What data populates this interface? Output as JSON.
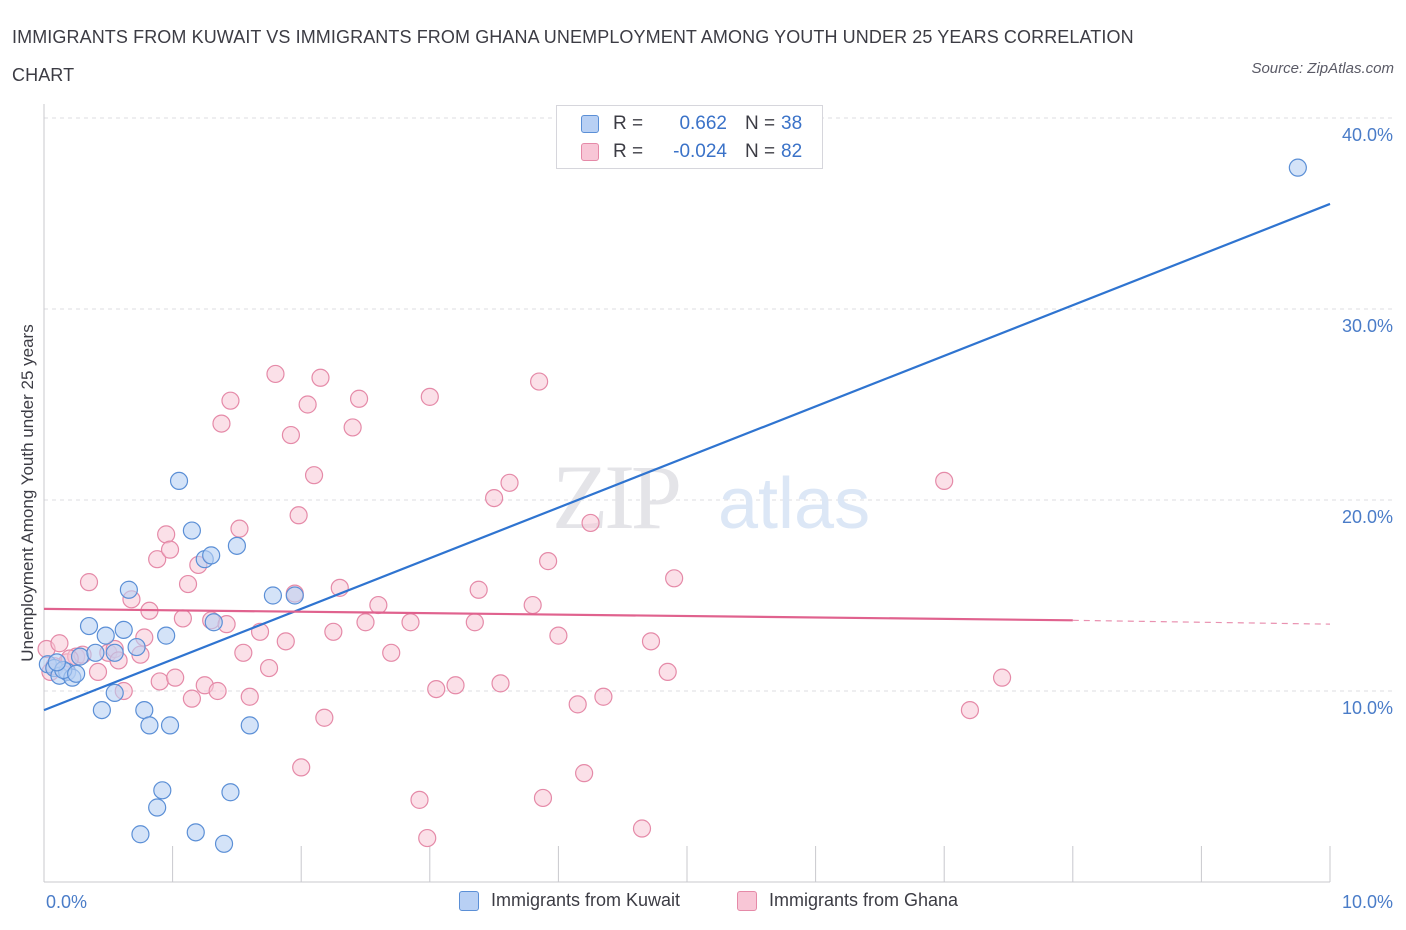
{
  "title": "IMMIGRANTS FROM KUWAIT VS IMMIGRANTS FROM GHANA UNEMPLOYMENT AMONG YOUTH UNDER 25 YEARS CORRELATION CHART",
  "source": "Source: ZipAtlas.com",
  "watermark": {
    "zip": "ZIP",
    "atlas": "atlas"
  },
  "colors": {
    "kuwait_fill": "#b8d0f4",
    "kuwait_stroke": "#5b8fd6",
    "kuwait_line": "#2f74d0",
    "ghana_fill": "#f8c6d6",
    "ghana_stroke": "#e58aa8",
    "ghana_line": "#e0628e"
  },
  "legend": {
    "rows": [
      {
        "r_label": "R =",
        "r_value": "0.662",
        "n_label": "N =",
        "n_value": "38"
      },
      {
        "r_label": "R =",
        "r_value": "-0.024",
        "n_label": "N =",
        "n_value": "82"
      }
    ]
  },
  "bottom_legend": {
    "kuwait": "Immigrants from Kuwait",
    "ghana": "Immigrants from Ghana"
  },
  "chart_data": {
    "type": "scatter",
    "xlabel": "",
    "ylabel": "Unemployment Among Youth under 25 years",
    "xlim": [
      0,
      10
    ],
    "ylim": [
      0,
      40
    ],
    "x_tick_labels": [
      "0.0%",
      "10.0%"
    ],
    "y_ticks": [
      10,
      20,
      30,
      40
    ],
    "y_tick_labels": [
      "10.0%",
      "20.0%",
      "30.0%",
      "40.0%"
    ],
    "grid": "horizontal dashed",
    "legend_placement": "top-center",
    "series": [
      {
        "name": "Immigrants from Kuwait",
        "trend": {
          "x": [
            0,
            10
          ],
          "y": [
            9.0,
            35.5
          ],
          "dashed_from": null
        },
        "points": [
          [
            0.03,
            11.4
          ],
          [
            0.08,
            11.2
          ],
          [
            0.12,
            10.8
          ],
          [
            0.18,
            11.0
          ],
          [
            0.22,
            10.7
          ],
          [
            0.28,
            11.8
          ],
          [
            0.35,
            13.4
          ],
          [
            0.4,
            12.0
          ],
          [
            0.45,
            9.0
          ],
          [
            0.48,
            12.9
          ],
          [
            0.55,
            12.0
          ],
          [
            0.55,
            9.9
          ],
          [
            0.62,
            13.2
          ],
          [
            0.66,
            15.3
          ],
          [
            0.72,
            12.3
          ],
          [
            0.75,
            2.5
          ],
          [
            0.78,
            9.0
          ],
          [
            0.82,
            8.2
          ],
          [
            0.88,
            3.9
          ],
          [
            0.92,
            4.8
          ],
          [
            0.95,
            12.9
          ],
          [
            0.98,
            8.2
          ],
          [
            1.05,
            21.0
          ],
          [
            1.15,
            18.4
          ],
          [
            1.18,
            2.6
          ],
          [
            1.25,
            16.9
          ],
          [
            1.3,
            17.1
          ],
          [
            1.32,
            13.6
          ],
          [
            1.4,
            2.0
          ],
          [
            1.45,
            4.7
          ],
          [
            1.5,
            17.6
          ],
          [
            1.6,
            8.2
          ],
          [
            1.78,
            15.0
          ],
          [
            1.95,
            15.0
          ],
          [
            9.75,
            37.4
          ],
          [
            0.15,
            11.1
          ],
          [
            0.25,
            10.9
          ],
          [
            0.1,
            11.5
          ]
        ]
      },
      {
        "name": "Immigrants from Ghana",
        "trend": {
          "x": [
            0,
            8.0
          ],
          "y": [
            14.3,
            13.7
          ],
          "dashed_from": 8.0,
          "dashed_to_x": 10,
          "dashed_to_y": 13.5
        },
        "points": [
          [
            0.02,
            12.2
          ],
          [
            0.05,
            11.0
          ],
          [
            0.12,
            12.5
          ],
          [
            0.18,
            11.5
          ],
          [
            0.25,
            11.8
          ],
          [
            0.3,
            11.9
          ],
          [
            0.35,
            15.7
          ],
          [
            0.42,
            11.0
          ],
          [
            0.5,
            12.0
          ],
          [
            0.55,
            12.2
          ],
          [
            0.58,
            11.6
          ],
          [
            0.62,
            10.0
          ],
          [
            0.68,
            14.8
          ],
          [
            0.75,
            11.9
          ],
          [
            0.78,
            12.8
          ],
          [
            0.82,
            14.2
          ],
          [
            0.88,
            16.9
          ],
          [
            0.9,
            10.5
          ],
          [
            0.95,
            18.2
          ],
          [
            0.98,
            17.4
          ],
          [
            1.02,
            10.7
          ],
          [
            1.08,
            13.8
          ],
          [
            1.12,
            15.6
          ],
          [
            1.15,
            9.6
          ],
          [
            1.2,
            16.6
          ],
          [
            1.25,
            10.3
          ],
          [
            1.3,
            13.7
          ],
          [
            1.35,
            10.0
          ],
          [
            1.38,
            24.0
          ],
          [
            1.42,
            13.5
          ],
          [
            1.45,
            25.2
          ],
          [
            1.52,
            18.5
          ],
          [
            1.55,
            12.0
          ],
          [
            1.6,
            9.7
          ],
          [
            1.68,
            13.1
          ],
          [
            1.75,
            11.2
          ],
          [
            1.8,
            26.6
          ],
          [
            1.88,
            12.6
          ],
          [
            1.92,
            23.4
          ],
          [
            1.95,
            15.1
          ],
          [
            1.98,
            19.2
          ],
          [
            2.0,
            6.0
          ],
          [
            2.05,
            25.0
          ],
          [
            2.1,
            21.3
          ],
          [
            2.15,
            26.4
          ],
          [
            2.18,
            8.6
          ],
          [
            2.25,
            13.1
          ],
          [
            2.3,
            15.4
          ],
          [
            2.4,
            23.8
          ],
          [
            2.45,
            25.3
          ],
          [
            2.5,
            13.6
          ],
          [
            2.6,
            14.5
          ],
          [
            2.7,
            12.0
          ],
          [
            2.85,
            13.6
          ],
          [
            2.92,
            4.3
          ],
          [
            2.98,
            2.3
          ],
          [
            3.0,
            25.4
          ],
          [
            3.05,
            10.1
          ],
          [
            3.2,
            10.3
          ],
          [
            3.35,
            13.6
          ],
          [
            3.38,
            15.3
          ],
          [
            3.5,
            20.1
          ],
          [
            3.55,
            10.4
          ],
          [
            3.62,
            20.9
          ],
          [
            3.8,
            14.5
          ],
          [
            3.85,
            26.2
          ],
          [
            3.88,
            4.4
          ],
          [
            3.92,
            16.8
          ],
          [
            4.0,
            12.9
          ],
          [
            4.15,
            9.3
          ],
          [
            4.2,
            5.7
          ],
          [
            4.25,
            18.8
          ],
          [
            4.35,
            9.7
          ],
          [
            4.65,
            2.8
          ],
          [
            4.72,
            12.6
          ],
          [
            4.85,
            11.0
          ],
          [
            4.9,
            15.9
          ],
          [
            7.0,
            21.0
          ],
          [
            7.2,
            9.0
          ],
          [
            7.45,
            10.7
          ],
          [
            0.08,
            11.3
          ],
          [
            0.2,
            11.7
          ]
        ]
      }
    ]
  }
}
